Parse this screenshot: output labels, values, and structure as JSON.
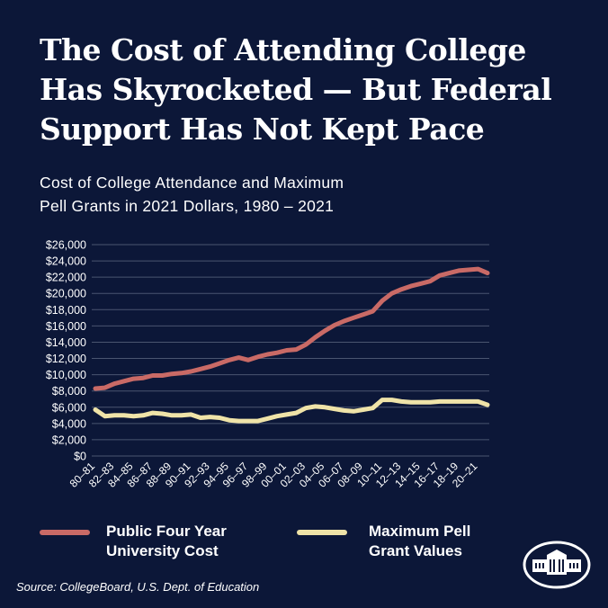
{
  "title": "The Cost of Attending College Has Skyrocketed — But Federal Support Has Not Kept Pace",
  "source": "Source: CollegeBoard, U.S. Dept. of Education",
  "colors": {
    "background": "#0c1738",
    "cost": "#c96a66",
    "pell": "#efe3a8",
    "grid": "#4a5570"
  },
  "logo": "white-house-seal-icon",
  "chart_data": {
    "type": "line",
    "title": "Cost of College Attendance and Maximum Pell Grants in 2021 Dollars, 1980 – 2021",
    "title_lines": [
      "Cost of College Attendance and Maximum",
      "Pell Grants in 2021 Dollars, 1980 – 2021"
    ],
    "categories": [
      "80-81",
      "81-82",
      "82-83",
      "83-84",
      "84-85",
      "85-86",
      "86-87",
      "87-88",
      "88-89",
      "89-90",
      "90-91",
      "91-92",
      "92-93",
      "93-94",
      "94-95",
      "95-96",
      "96-97",
      "97-98",
      "98-99",
      "99-00",
      "00-01",
      "01-02",
      "02-03",
      "03-04",
      "04-05",
      "05-06",
      "06-07",
      "07-08",
      "08-09",
      "09-10",
      "10-11",
      "11-12",
      "12-13",
      "13-14",
      "14-15",
      "15-16",
      "16-17",
      "17-18",
      "18-19",
      "19-20",
      "20-21",
      "21-22"
    ],
    "tick_labels": [
      "80–81",
      "82–83",
      "84–85",
      "86–87",
      "88–89",
      "90–91",
      "92–93",
      "94–95",
      "96–97",
      "98–99",
      "00–01",
      "02–03",
      "04–05",
      "06–07",
      "08–09",
      "10–11",
      "12–13",
      "14–15",
      "16–17",
      "18–19",
      "20–21"
    ],
    "y_ticks": [
      "$0",
      "$2,000",
      "$4,000",
      "$6,000",
      "$8,000",
      "$10,000",
      "$12,000",
      "$14,000",
      "$16,000",
      "$18,000",
      "$20,000",
      "$22,000",
      "$24,000",
      "$26,000"
    ],
    "ylim": [
      0,
      26000
    ],
    "grid": true,
    "legend_placement": "bottom",
    "series": [
      {
        "name": "Public Four Year University Cost",
        "name_lines": [
          "Public Four Year",
          "University Cost"
        ],
        "color": "#c96a66",
        "values": [
          8300,
          8400,
          8900,
          9200,
          9500,
          9600,
          9900,
          9900,
          10100,
          10200,
          10400,
          10700,
          11000,
          11400,
          11800,
          12100,
          11800,
          12200,
          12500,
          12700,
          13000,
          13100,
          13700,
          14600,
          15400,
          16100,
          16600,
          17000,
          17400,
          17800,
          19100,
          20000,
          20500,
          20900,
          21200,
          21500,
          22200,
          22500,
          22800,
          22900,
          23000,
          22500
        ]
      },
      {
        "name": "Maximum Pell Grant Values",
        "name_lines": [
          "Maximum Pell",
          "Grant Values"
        ],
        "color": "#efe3a8",
        "values": [
          5700,
          4900,
          5000,
          5000,
          4900,
          5000,
          5300,
          5200,
          5000,
          5000,
          5100,
          4700,
          4800,
          4700,
          4400,
          4300,
          4300,
          4300,
          4600,
          4900,
          5100,
          5300,
          5900,
          6100,
          6000,
          5800,
          5600,
          5500,
          5700,
          5900,
          6900,
          6900,
          6700,
          6600,
          6600,
          6600,
          6700,
          6700,
          6700,
          6700,
          6700,
          6300
        ]
      }
    ]
  }
}
